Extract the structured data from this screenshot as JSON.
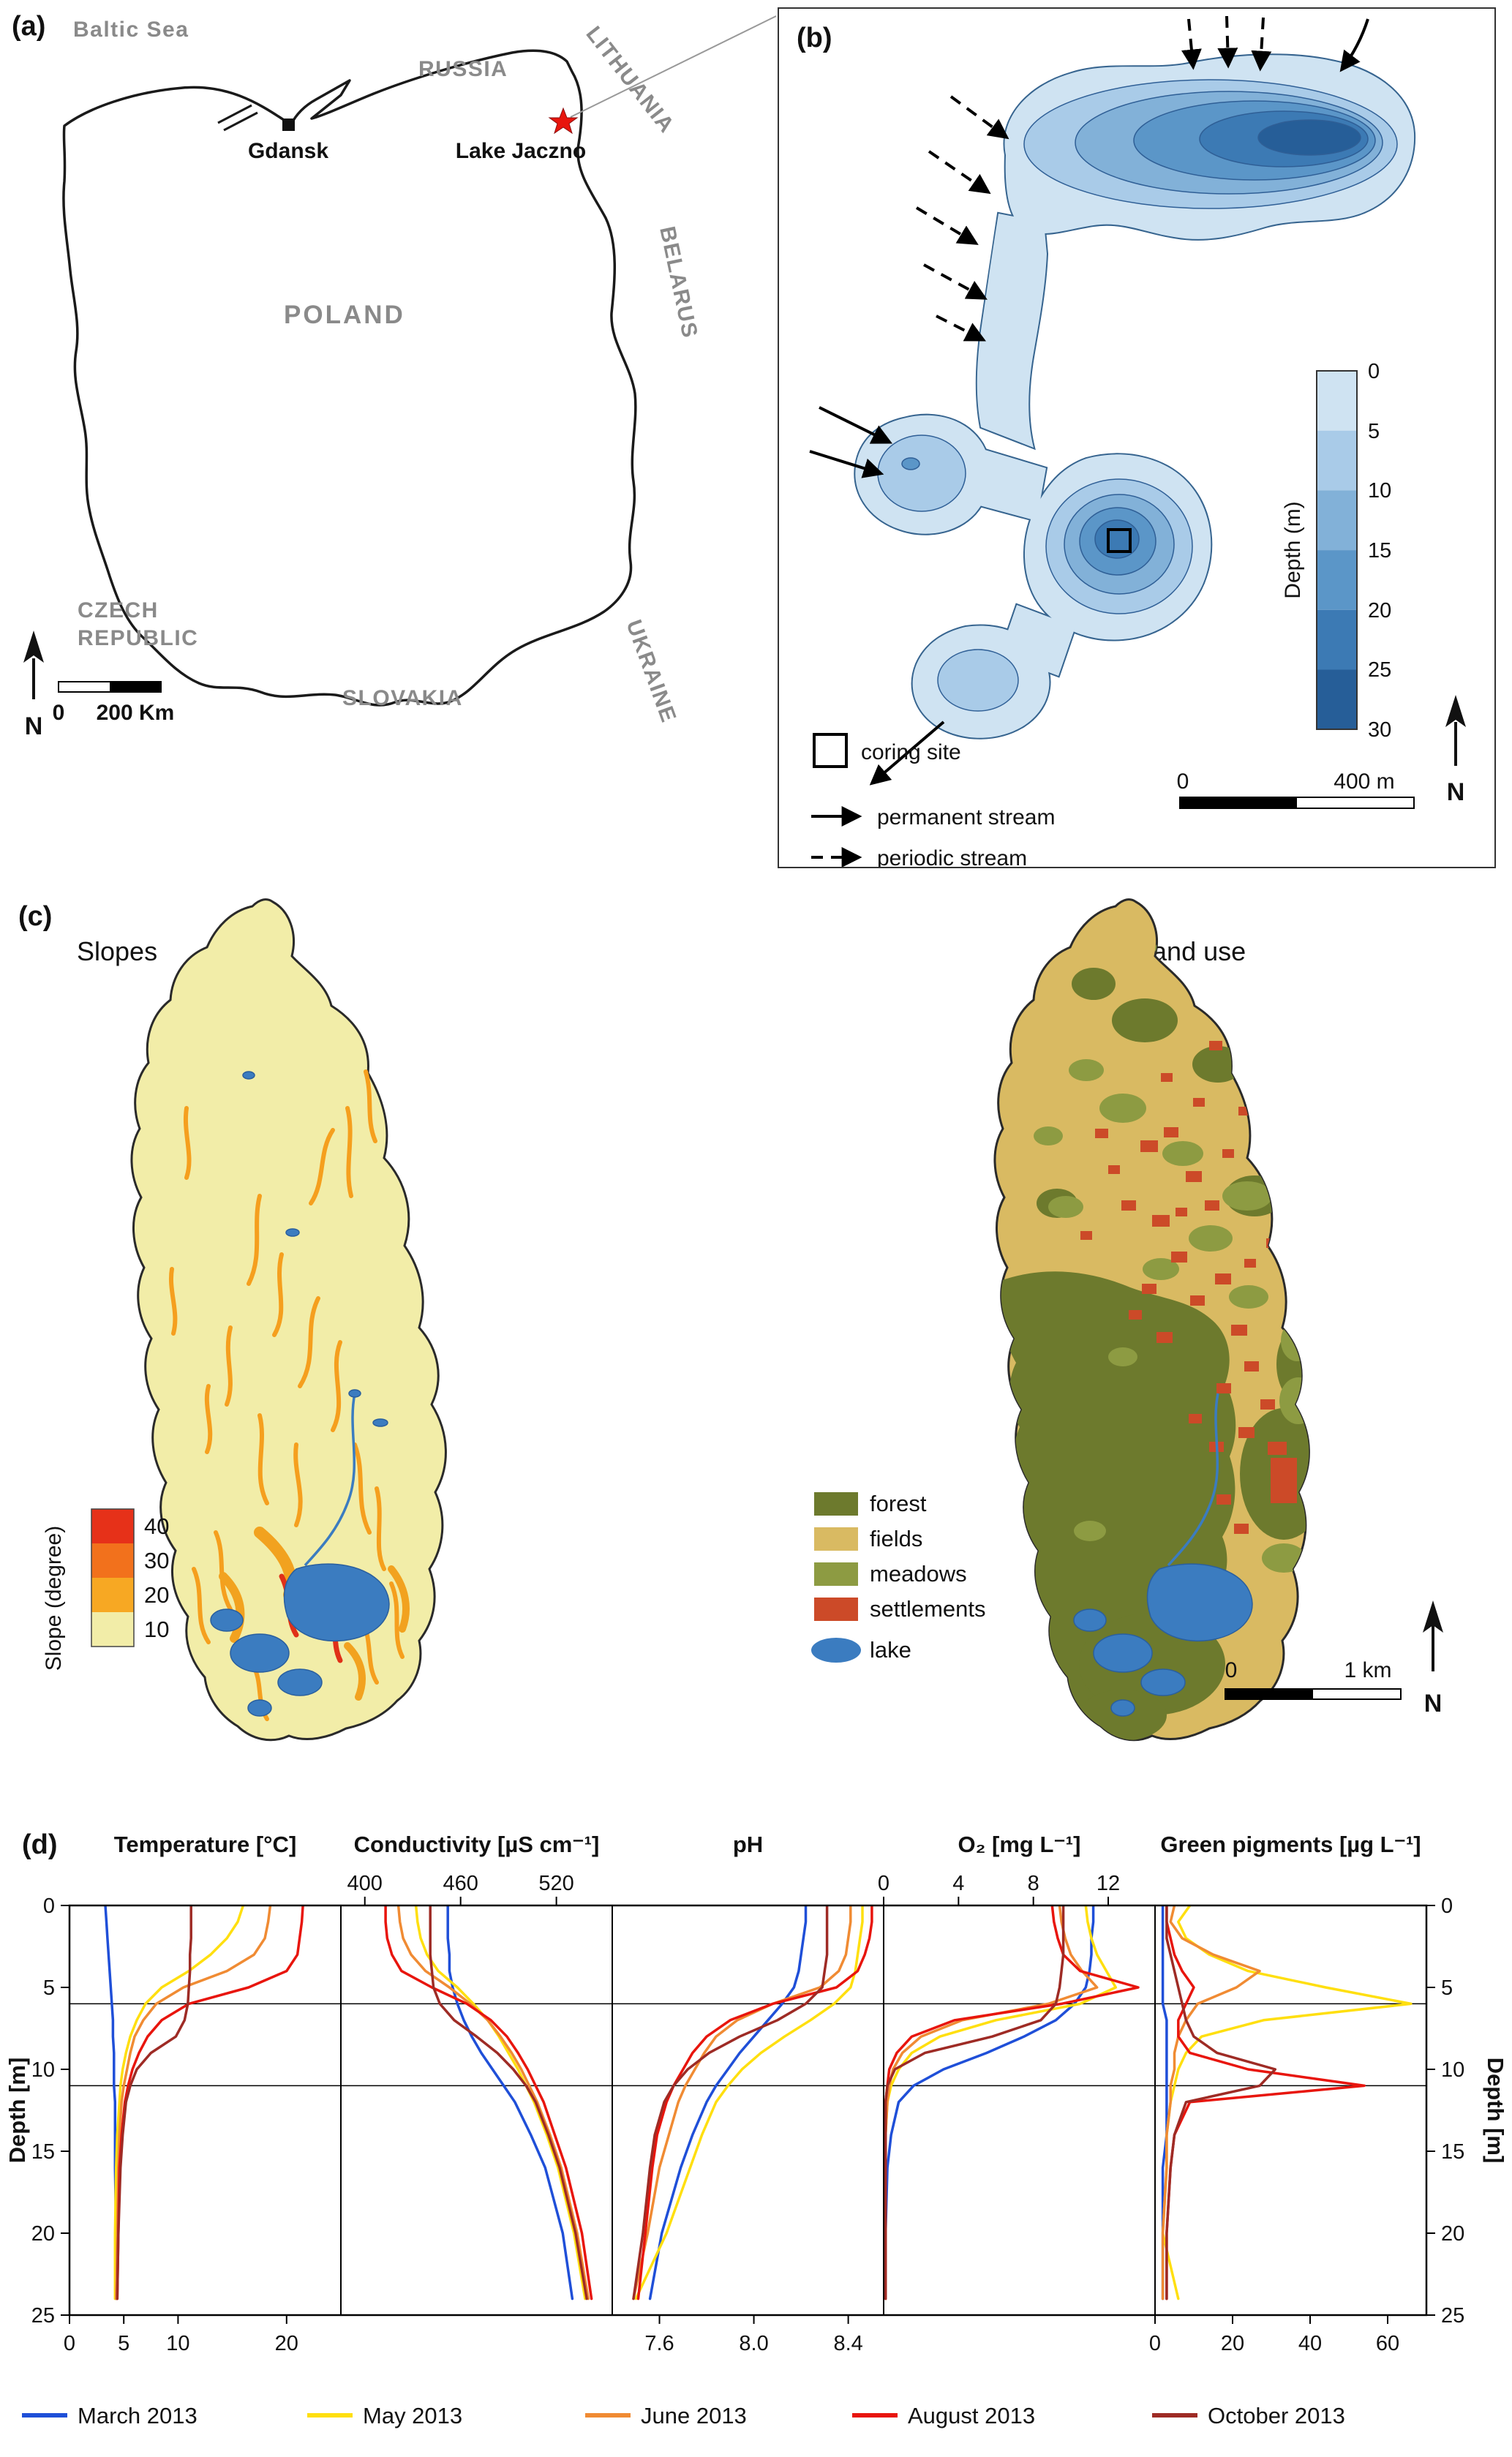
{
  "panels": {
    "a": {
      "label": "(a)",
      "baltic_sea": "Baltic Sea",
      "russia": "RUSSIA",
      "lithuania": "LITHUANIA",
      "poland": "POLAND",
      "belarus": "BELARUS",
      "czech_line1": "CZECH",
      "czech_line2": "REPUBLIC",
      "slovakia": "SLOVAKIA",
      "ukraine": "UKRAINE",
      "gdansk": "Gdansk",
      "lake": "Lake Jaczno",
      "north": "N",
      "scale_zero": "0",
      "scale_label": "200 Km"
    },
    "b": {
      "label": "(b)",
      "depth_axis": "Depth (m)",
      "depth_ticks": [
        "0",
        "5",
        "10",
        "15",
        "20",
        "25",
        "30"
      ],
      "coring": "coring site",
      "permanent": "permanent stream",
      "periodic": "periodic stream",
      "scale_zero": "0",
      "scale_label": "400 m",
      "north": "N"
    },
    "c": {
      "label": "(c)",
      "slopes_title": "Slopes",
      "landuse_title": "Land use",
      "slope_axis": "Slope (degree)",
      "slope_ticks": [
        "40",
        "30",
        "20",
        "10"
      ],
      "legend": [
        "forest",
        "fields",
        "meadows",
        "settlements",
        "lake"
      ],
      "scale_zero": "0",
      "scale_label": "1 km",
      "north": "N"
    },
    "d": {
      "label": "(d)"
    }
  },
  "colors": {
    "depth_scale": [
      "#cfe3f2",
      "#a9cbe8",
      "#82b1d8",
      "#5b96c8",
      "#3c7ab4",
      "#265e98"
    ],
    "slope_scale": [
      "#e63119",
      "#f2711c",
      "#f7a823",
      "#f2eda8"
    ],
    "land_use": {
      "forest": "#6d7a2d",
      "fields": "#d9ba62",
      "meadows": "#8d9b42",
      "settlements": "#cc4a28",
      "lake": "#3b7cc0"
    },
    "lake_marker": "#e8150d"
  },
  "chart_data": {
    "type": "line",
    "orientation": "depth-profile",
    "depth_label": "Depth [m]",
    "depth_ticks": [
      0,
      5,
      10,
      15,
      20,
      25
    ],
    "depth_range": [
      0,
      25
    ],
    "reference_depths": [
      6,
      11
    ],
    "depths": [
      0,
      1,
      2,
      3,
      4,
      5,
      6,
      7,
      8,
      9,
      10,
      11,
      12,
      14,
      16,
      20,
      24
    ],
    "series_meta": [
      {
        "name": "March 2013",
        "color": "#1f4fd8"
      },
      {
        "name": "May 2013",
        "color": "#ffdf0f"
      },
      {
        "name": "June 2013",
        "color": "#f08b33"
      },
      {
        "name": "August 2013",
        "color": "#e8150d"
      },
      {
        "name": "October 2013",
        "color": "#9e2b25"
      }
    ],
    "panels": [
      {
        "title": "Temperature [°C]",
        "xlim": [
          0,
          25
        ],
        "ticks": [
          0,
          5,
          10,
          20
        ],
        "tick_labels": [
          "0",
          "5",
          "10",
          "20"
        ],
        "tick_side": "bottom",
        "series": [
          [
            3.3,
            3.4,
            3.5,
            3.6,
            3.7,
            3.8,
            3.9,
            4.0,
            4.0,
            4.1,
            4.1,
            4.1,
            4.2,
            4.2,
            4.2,
            4.3,
            4.3
          ],
          [
            16.0,
            15.5,
            14.5,
            13.0,
            11.0,
            8.5,
            7.0,
            6.2,
            5.6,
            5.2,
            4.9,
            4.7,
            4.6,
            4.4,
            4.3,
            4.2,
            4.2
          ],
          [
            18.5,
            18.3,
            18.0,
            17.0,
            14.5,
            10.5,
            8.0,
            6.8,
            6.0,
            5.6,
            5.3,
            5.0,
            4.8,
            4.6,
            4.5,
            4.4,
            4.3
          ],
          [
            21.5,
            21.4,
            21.2,
            21.0,
            20.0,
            16.5,
            11.0,
            8.5,
            7.2,
            6.4,
            5.8,
            5.4,
            5.1,
            4.8,
            4.6,
            4.5,
            4.4
          ],
          [
            11.2,
            11.2,
            11.2,
            11.1,
            11.1,
            11.0,
            10.9,
            10.6,
            9.8,
            7.5,
            6.2,
            5.6,
            5.2,
            4.9,
            4.7,
            4.5,
            4.4
          ]
        ]
      },
      {
        "title": "Conductivity [µS cm⁻¹]",
        "xlim": [
          385,
          555
        ],
        "ticks": [
          400,
          460,
          520
        ],
        "tick_labels": [
          "400",
          "460",
          "520"
        ],
        "tick_side": "top",
        "series": [
          [
            452,
            452,
            452,
            453,
            453,
            455,
            458,
            462,
            467,
            473,
            480,
            487,
            494,
            504,
            513,
            524,
            530
          ],
          [
            432,
            433,
            435,
            439,
            446,
            458,
            468,
            477,
            484,
            490,
            496,
            501,
            506,
            514,
            521,
            531,
            538
          ],
          [
            421,
            422,
            424,
            429,
            438,
            453,
            466,
            477,
            485,
            492,
            498,
            503,
            508,
            516,
            523,
            533,
            540
          ],
          [
            413,
            413,
            414,
            417,
            423,
            442,
            464,
            479,
            489,
            496,
            502,
            507,
            512,
            519,
            526,
            536,
            542
          ],
          [
            441,
            441,
            441,
            441,
            442,
            443,
            447,
            456,
            470,
            483,
            493,
            501,
            507,
            515,
            522,
            532,
            539
          ]
        ]
      },
      {
        "title": "pH",
        "xlim": [
          7.4,
          8.55
        ],
        "ticks": [
          7.6,
          8.0,
          8.4
        ],
        "tick_labels": [
          "7.6",
          "8.0",
          "8.4"
        ],
        "tick_side": "bottom",
        "series": [
          [
            8.22,
            8.22,
            8.21,
            8.2,
            8.19,
            8.17,
            8.12,
            8.06,
            8.0,
            7.94,
            7.89,
            7.84,
            7.8,
            7.74,
            7.69,
            7.61,
            7.56
          ],
          [
            8.46,
            8.46,
            8.45,
            8.44,
            8.43,
            8.41,
            8.34,
            8.24,
            8.13,
            8.03,
            7.95,
            7.89,
            7.84,
            7.78,
            7.73,
            7.63,
            7.5
          ],
          [
            8.41,
            8.41,
            8.4,
            8.39,
            8.36,
            8.28,
            8.08,
            7.93,
            7.84,
            7.79,
            7.75,
            7.71,
            7.68,
            7.64,
            7.6,
            7.55,
            7.49
          ],
          [
            8.5,
            8.5,
            8.49,
            8.47,
            8.44,
            8.35,
            8.08,
            7.9,
            7.8,
            7.74,
            7.7,
            7.66,
            7.63,
            7.59,
            7.57,
            7.54,
            7.51
          ],
          [
            8.31,
            8.31,
            8.31,
            8.31,
            8.3,
            8.29,
            8.22,
            8.1,
            7.94,
            7.81,
            7.72,
            7.66,
            7.62,
            7.58,
            7.56,
            7.53,
            7.49
          ]
        ]
      },
      {
        "title": "O₂ [mg L⁻¹]",
        "xlim": [
          0,
          14.5
        ],
        "ticks": [
          0,
          4,
          8,
          12
        ],
        "tick_labels": [
          "0",
          "4",
          "8",
          "12"
        ],
        "tick_side": "top",
        "series": [
          [
            11.2,
            11.2,
            11.1,
            11.1,
            11.0,
            10.8,
            10.2,
            9.2,
            7.5,
            5.5,
            3.2,
            1.6,
            0.8,
            0.4,
            0.2,
            0.1,
            0.1
          ],
          [
            10.8,
            10.9,
            11.1,
            11.4,
            11.9,
            12.4,
            10.5,
            6.0,
            3.0,
            1.5,
            0.8,
            0.4,
            0.2,
            0.1,
            0.1,
            0.1,
            0.1
          ],
          [
            9.4,
            9.5,
            9.7,
            10.0,
            10.6,
            11.4,
            8.8,
            4.2,
            2.0,
            1.0,
            0.5,
            0.3,
            0.2,
            0.1,
            0.1,
            0.1,
            0.1
          ],
          [
            9.0,
            9.1,
            9.3,
            9.6,
            10.5,
            13.6,
            9.5,
            3.8,
            1.5,
            0.7,
            0.3,
            0.2,
            0.1,
            0.1,
            0.1,
            0.1,
            0.1
          ],
          [
            9.6,
            9.6,
            9.6,
            9.6,
            9.5,
            9.4,
            9.2,
            8.4,
            5.8,
            2.2,
            0.6,
            0.2,
            0.1,
            0.1,
            0.1,
            0.1,
            0.1
          ]
        ]
      },
      {
        "title": "Green pigments [µg L⁻¹]",
        "xlim": [
          0,
          70
        ],
        "ticks": [
          0,
          20,
          40,
          60
        ],
        "tick_labels": [
          "0",
          "20",
          "40",
          "60"
        ],
        "tick_side": "bottom",
        "series": [
          [
            2,
            2,
            2,
            2,
            2,
            2,
            2,
            3,
            3,
            3,
            3,
            3,
            3,
            3,
            2,
            2,
            2
          ],
          [
            9,
            6,
            8,
            14,
            24,
            44,
            66,
            28,
            12,
            8,
            6,
            5,
            4,
            3,
            3,
            2,
            6
          ],
          [
            5,
            4,
            7,
            15,
            27,
            21,
            11,
            8,
            6,
            5,
            5,
            4,
            4,
            3,
            3,
            2,
            2
          ],
          [
            3,
            3,
            4,
            5,
            7,
            10,
            8,
            6,
            6,
            9,
            24,
            54,
            9,
            5,
            4,
            3,
            3
          ],
          [
            3,
            3,
            3,
            4,
            5,
            6,
            7,
            8,
            10,
            16,
            31,
            27,
            8,
            5,
            4,
            3,
            3
          ]
        ]
      }
    ]
  }
}
